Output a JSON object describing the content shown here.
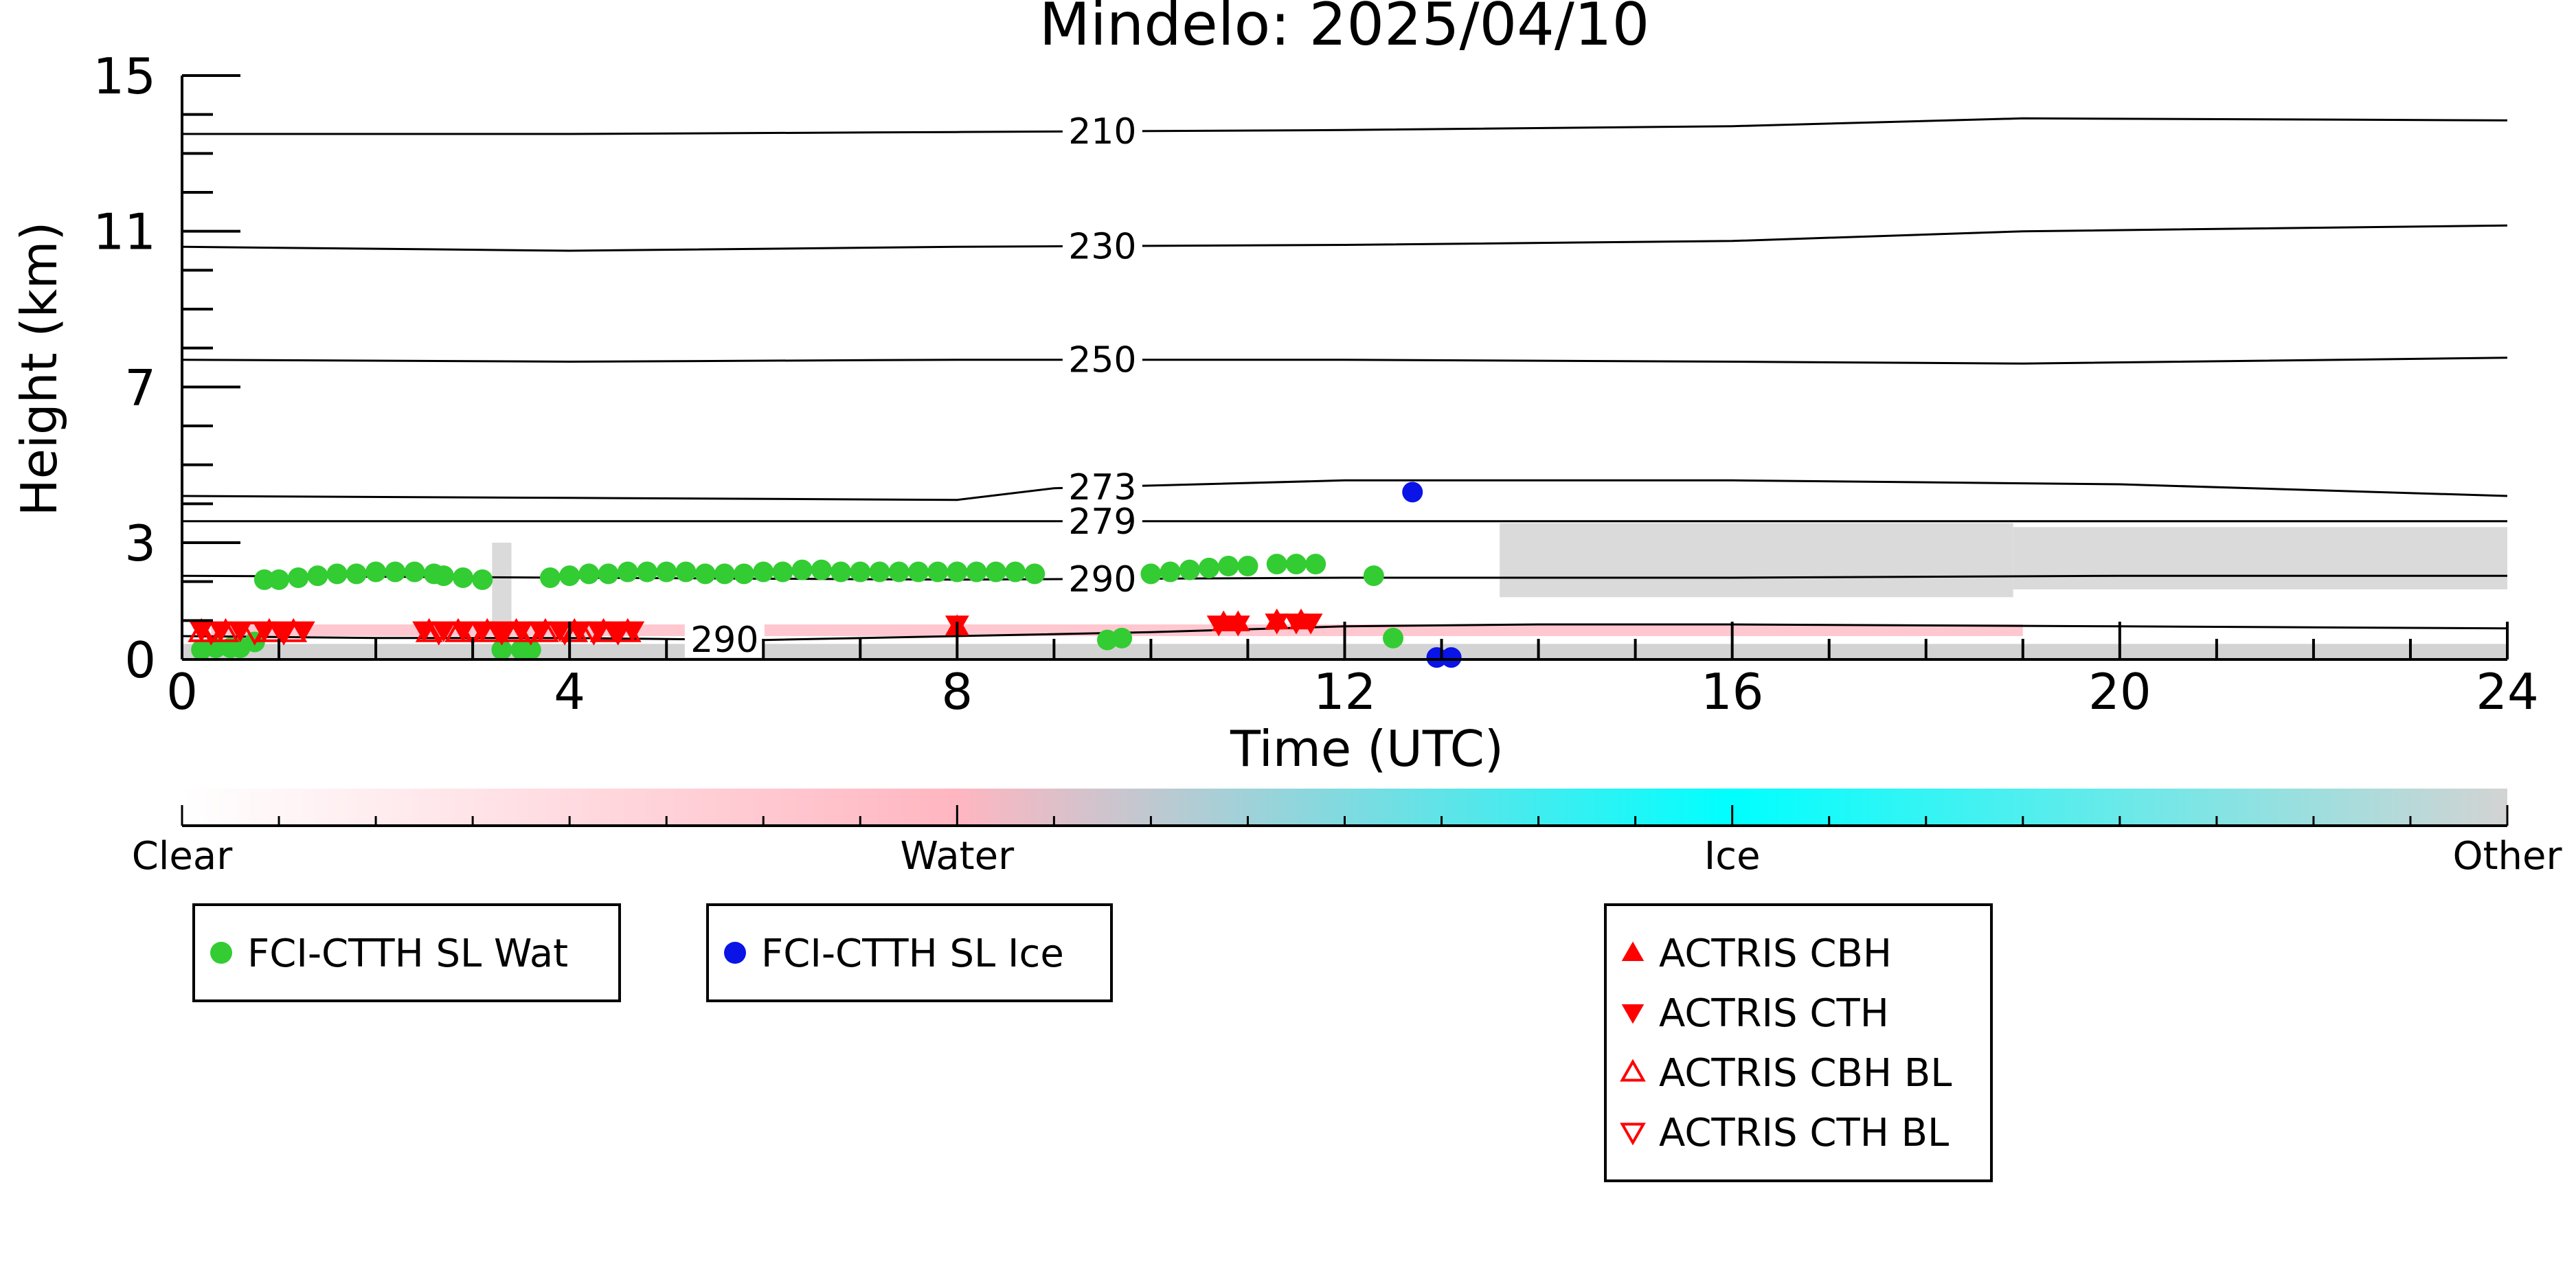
{
  "chart_data": {
    "type": "scatter",
    "title": "Mindelo: 2025/04/10",
    "xlabel": "Time (UTC)",
    "ylabel": "Height (km)",
    "xlim": [
      0,
      24
    ],
    "ylim": [
      0,
      15
    ],
    "x_ticks": [
      0,
      4,
      8,
      12,
      16,
      20,
      24
    ],
    "y_ticks": [
      0,
      3,
      7,
      11,
      15
    ],
    "x_tick_labels": [
      "0",
      "4",
      "8",
      "12",
      "16",
      "20",
      "24"
    ],
    "y_tick_labels": [
      "0",
      "3",
      "7",
      "11",
      "15"
    ],
    "grid": false,
    "background": {
      "description_colors": {
        "clear": "#ffffff",
        "water": "#ffb6c1",
        "ice": "#00ffff",
        "other": "#d3d3d3"
      },
      "other_layer_near_surface": {
        "x": [
          0,
          24
        ],
        "ymax": 0.4
      },
      "other_patches": [
        {
          "x": [
            3.2,
            3.4
          ],
          "y": [
            0.8,
            3.0
          ]
        },
        {
          "x": [
            13.6,
            18.9
          ],
          "y": [
            1.6,
            3.5
          ]
        },
        {
          "x": [
            18.9,
            24
          ],
          "y": [
            1.8,
            3.4
          ]
        }
      ],
      "water_band": {
        "x": [
          0.3,
          19.0
        ],
        "y": [
          0.6,
          0.9
        ]
      }
    },
    "isotherms": [
      {
        "label": "210",
        "label_x": 9.5,
        "x": [
          0,
          4,
          8,
          12,
          16,
          19,
          24
        ],
        "y": [
          13.5,
          13.5,
          13.55,
          13.6,
          13.7,
          13.9,
          13.85
        ]
      },
      {
        "label": "230",
        "label_x": 9.5,
        "x": [
          0,
          4,
          8,
          12,
          16,
          19,
          24
        ],
        "y": [
          10.6,
          10.5,
          10.6,
          10.65,
          10.75,
          11.0,
          11.15
        ]
      },
      {
        "label": "250",
        "label_x": 9.5,
        "x": [
          0,
          4,
          8,
          12,
          16,
          19,
          24
        ],
        "y": [
          7.7,
          7.65,
          7.7,
          7.7,
          7.65,
          7.6,
          7.75
        ]
      },
      {
        "label": "273",
        "label_x": 9.5,
        "x": [
          0,
          4,
          8,
          9,
          12,
          16,
          20,
          24
        ],
        "y": [
          4.2,
          4.15,
          4.1,
          4.4,
          4.6,
          4.6,
          4.5,
          4.2
        ]
      },
      {
        "label": "279",
        "label_x": 9.5,
        "x": [
          0,
          4,
          8,
          12,
          16,
          20,
          24
        ],
        "y": [
          3.55,
          3.55,
          3.55,
          3.55,
          3.55,
          3.55,
          3.55
        ]
      },
      {
        "label": "290",
        "label_x": 9.5,
        "x": [
          0,
          4,
          8,
          12,
          16,
          20,
          24
        ],
        "y": [
          2.15,
          2.1,
          2.05,
          2.1,
          2.1,
          2.15,
          2.15
        ]
      },
      {
        "label": "290",
        "label_x": 5.6,
        "x": [
          0,
          2,
          4,
          6,
          8,
          10,
          12,
          14,
          16,
          20,
          24
        ],
        "y": [
          0.6,
          0.55,
          0.55,
          0.5,
          0.6,
          0.7,
          0.85,
          0.9,
          0.9,
          0.85,
          0.8
        ]
      }
    ],
    "series": [
      {
        "name": "FCI-CTTH SL Wat",
        "marker": "circle",
        "color": "#33cc33",
        "points": [
          [
            0.2,
            0.25
          ],
          [
            0.35,
            0.3
          ],
          [
            0.5,
            0.3
          ],
          [
            0.6,
            0.3
          ],
          [
            0.75,
            0.45
          ],
          [
            0.85,
            2.05
          ],
          [
            1.0,
            2.05
          ],
          [
            1.2,
            2.1
          ],
          [
            1.4,
            2.15
          ],
          [
            1.6,
            2.2
          ],
          [
            1.8,
            2.2
          ],
          [
            2.0,
            2.25
          ],
          [
            2.2,
            2.25
          ],
          [
            2.4,
            2.25
          ],
          [
            2.6,
            2.2
          ],
          [
            2.7,
            2.15
          ],
          [
            2.9,
            2.1
          ],
          [
            3.1,
            2.05
          ],
          [
            3.3,
            0.25
          ],
          [
            3.5,
            0.25
          ],
          [
            3.6,
            0.25
          ],
          [
            3.8,
            2.1
          ],
          [
            4.0,
            2.15
          ],
          [
            4.2,
            2.2
          ],
          [
            4.4,
            2.2
          ],
          [
            4.6,
            2.25
          ],
          [
            4.8,
            2.25
          ],
          [
            5.0,
            2.25
          ],
          [
            5.2,
            2.25
          ],
          [
            5.4,
            2.2
          ],
          [
            5.6,
            2.2
          ],
          [
            5.8,
            2.2
          ],
          [
            6.0,
            2.25
          ],
          [
            6.2,
            2.25
          ],
          [
            6.4,
            2.3
          ],
          [
            6.6,
            2.3
          ],
          [
            6.8,
            2.25
          ],
          [
            7.0,
            2.25
          ],
          [
            7.2,
            2.25
          ],
          [
            7.4,
            2.25
          ],
          [
            7.6,
            2.25
          ],
          [
            7.8,
            2.25
          ],
          [
            8.0,
            2.25
          ],
          [
            8.2,
            2.25
          ],
          [
            8.4,
            2.25
          ],
          [
            8.6,
            2.25
          ],
          [
            8.8,
            2.2
          ],
          [
            9.55,
            0.5
          ],
          [
            9.7,
            0.55
          ],
          [
            10.0,
            2.2
          ],
          [
            10.2,
            2.25
          ],
          [
            10.4,
            2.3
          ],
          [
            10.6,
            2.35
          ],
          [
            10.8,
            2.4
          ],
          [
            11.0,
            2.4
          ],
          [
            11.3,
            2.45
          ],
          [
            11.5,
            2.45
          ],
          [
            11.7,
            2.45
          ],
          [
            12.3,
            2.15
          ],
          [
            12.5,
            0.55
          ]
        ]
      },
      {
        "name": "FCI-CTTH SL Ice",
        "marker": "circle",
        "color": "#0a14e6",
        "points": [
          [
            12.7,
            4.3
          ],
          [
            12.95,
            0.05
          ],
          [
            13.1,
            0.05
          ]
        ]
      },
      {
        "name": "ACTRIS CBH",
        "marker": "triangle-up",
        "color": "#ff0000",
        "points": [
          [
            8.0,
            0.85
          ],
          [
            10.75,
            0.95
          ],
          [
            10.9,
            0.95
          ],
          [
            11.3,
            1.0
          ],
          [
            11.55,
            1.0
          ]
        ]
      },
      {
        "name": "ACTRIS CTH",
        "marker": "triangle-down",
        "color": "#ff0000",
        "points": [
          [
            0.2,
            0.75
          ],
          [
            0.4,
            0.75
          ],
          [
            0.6,
            0.75
          ],
          [
            0.85,
            0.75
          ],
          [
            1.05,
            0.75
          ],
          [
            1.25,
            0.75
          ],
          [
            2.5,
            0.75
          ],
          [
            2.7,
            0.75
          ],
          [
            2.9,
            0.75
          ],
          [
            3.1,
            0.75
          ],
          [
            3.3,
            0.75
          ],
          [
            3.5,
            0.75
          ],
          [
            3.7,
            0.75
          ],
          [
            3.9,
            0.75
          ],
          [
            4.1,
            0.75
          ],
          [
            4.3,
            0.75
          ],
          [
            4.5,
            0.75
          ],
          [
            4.65,
            0.75
          ],
          [
            8.0,
            0.9
          ],
          [
            10.7,
            0.9
          ],
          [
            10.9,
            0.9
          ],
          [
            11.3,
            0.95
          ],
          [
            11.5,
            0.95
          ],
          [
            11.65,
            0.95
          ]
        ]
      },
      {
        "name": "ACTRIS CBH BL",
        "marker": "triangle-up-open",
        "color": "#ff0000",
        "points": [
          [
            0.2,
            0.7
          ],
          [
            0.45,
            0.7
          ],
          [
            0.9,
            0.7
          ],
          [
            1.15,
            0.7
          ],
          [
            2.55,
            0.7
          ],
          [
            2.85,
            0.7
          ],
          [
            3.15,
            0.7
          ],
          [
            3.45,
            0.7
          ],
          [
            3.75,
            0.7
          ],
          [
            4.05,
            0.7
          ],
          [
            4.35,
            0.7
          ],
          [
            4.6,
            0.7
          ]
        ]
      },
      {
        "name": "ACTRIS CTH BL",
        "marker": "triangle-down-open",
        "color": "#ff0000",
        "points": [
          [
            0.3,
            0.72
          ],
          [
            0.75,
            0.72
          ],
          [
            1.05,
            0.72
          ],
          [
            2.65,
            0.72
          ],
          [
            3.0,
            0.72
          ],
          [
            3.3,
            0.72
          ],
          [
            3.6,
            0.72
          ],
          [
            3.95,
            0.72
          ],
          [
            4.25,
            0.72
          ],
          [
            4.5,
            0.72
          ]
        ]
      }
    ],
    "colorbar": {
      "labels": [
        "Clear",
        "Water",
        "Ice",
        "Other"
      ],
      "positions": [
        0,
        8,
        16,
        24
      ],
      "colors": [
        "#ffffff",
        "#ffb6c1",
        "#00ffff",
        "#d3d3d3"
      ]
    },
    "legends": [
      {
        "entries": [
          {
            "label": "FCI-CTTH SL Wat",
            "marker": "circle",
            "color": "#33cc33"
          }
        ]
      },
      {
        "entries": [
          {
            "label": "FCI-CTTH SL Ice",
            "marker": "circle",
            "color": "#0a14e6"
          }
        ]
      },
      {
        "entries": [
          {
            "label": "ACTRIS CBH",
            "marker": "triangle-up",
            "color": "#ff0000"
          },
          {
            "label": "ACTRIS CTH",
            "marker": "triangle-down",
            "color": "#ff0000"
          },
          {
            "label": "ACTRIS CBH BL",
            "marker": "triangle-up-open",
            "color": "#ff0000"
          },
          {
            "label": "ACTRIS CTH BL",
            "marker": "triangle-down-open",
            "color": "#ff0000"
          }
        ]
      }
    ]
  }
}
